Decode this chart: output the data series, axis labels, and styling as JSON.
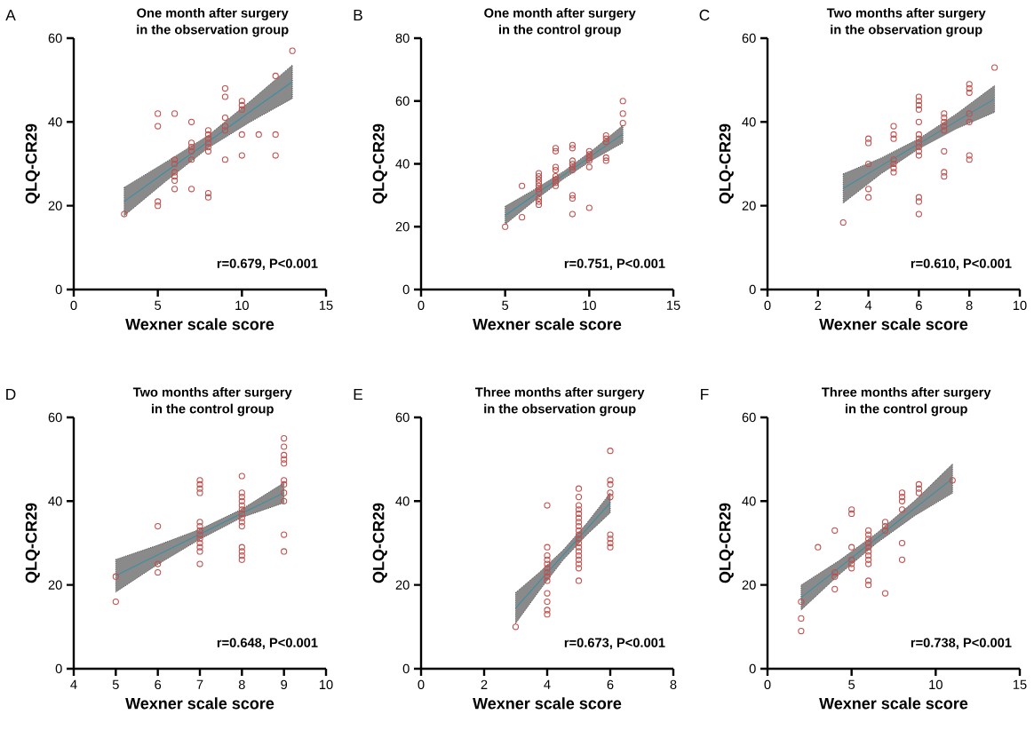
{
  "chart_data": [
    {
      "type": "scatter",
      "title": "One month after surgery",
      "subtitle": "in the observation group",
      "xlabel": "Wexner scale score",
      "ylabel": "QLQ-CR29",
      "xlim": [
        0,
        15
      ],
      "xticks": [
        0,
        5,
        10,
        15
      ],
      "ylim": [
        0,
        60
      ],
      "yticks": [
        0,
        20,
        40,
        60
      ],
      "annotations": [
        "A",
        "r=0.679, P<0.001"
      ],
      "series": [
        {
          "type": "line",
          "color": "#3a8fa5",
          "x": [
            3,
            5.5,
            8,
            10.5,
            13
          ],
          "values": [
            21,
            28.2,
            35.3,
            42.5,
            49.6
          ],
          "lower": [
            17.6,
            25.9,
            33.8,
            40,
            45.6
          ],
          "upper": [
            24.4,
            30.5,
            36.8,
            45,
            53.6
          ]
        },
        {
          "marker": "circle",
          "color": "#c0504d",
          "x": [
            3,
            5,
            5,
            5,
            5,
            6,
            6,
            6,
            6,
            6,
            6,
            6,
            7,
            7,
            7,
            7,
            7,
            7,
            8,
            8,
            8,
            8,
            8,
            8,
            8,
            8,
            9,
            9,
            9,
            9,
            9,
            9,
            10,
            10,
            10,
            10,
            10,
            11,
            12,
            12,
            12,
            13
          ],
          "values": [
            18,
            42,
            39,
            21,
            20,
            42,
            31,
            30,
            28,
            27,
            26,
            24,
            40,
            35,
            34,
            33,
            31,
            24,
            38,
            37,
            36,
            35,
            34,
            33,
            23,
            22,
            48,
            46,
            41,
            39,
            38,
            31,
            45,
            44,
            43,
            37,
            32,
            37,
            51,
            37,
            32,
            57
          ]
        }
      ]
    },
    {
      "type": "scatter",
      "title": "One month after surgery",
      "subtitle": "in the control group",
      "xlabel": "Wexner scale score",
      "ylabel": "QLQ-CR29",
      "xlim": [
        0,
        15
      ],
      "xticks": [
        0,
        5,
        10,
        15
      ],
      "ylim": [
        0,
        80
      ],
      "yticks": [
        0,
        20,
        40,
        60,
        80
      ],
      "annotations": [
        "B",
        "r=0.751, P<0.001"
      ],
      "series": [
        {
          "type": "line",
          "color": "#3a8fa5",
          "x": [
            5,
            6.75,
            8.5,
            10.25,
            12
          ],
          "values": [
            23.6,
            30.1,
            36.5,
            43,
            49.5
          ],
          "lower": [
            20.7,
            28.3,
            35.3,
            41.4,
            46.7
          ],
          "upper": [
            26.5,
            31.9,
            37.7,
            44.6,
            52.3
          ]
        },
        {
          "marker": "circle",
          "color": "#c0504d",
          "x": [
            5,
            6,
            6,
            7,
            7,
            7,
            7,
            7,
            7,
            7,
            7,
            7,
            7,
            8,
            8,
            8,
            8,
            8,
            8,
            8,
            8,
            9,
            9,
            9,
            9,
            9,
            9,
            9,
            9,
            9,
            10,
            10,
            10,
            10,
            10,
            10,
            11,
            11,
            11,
            11,
            11,
            12,
            12,
            12
          ],
          "values": [
            20,
            33,
            23,
            37,
            36,
            35,
            34,
            33,
            32,
            31,
            29,
            28,
            27,
            45,
            44,
            39,
            38,
            36,
            35,
            34,
            33,
            46,
            45,
            41,
            40,
            39,
            38,
            30,
            29,
            24,
            44,
            43,
            42,
            41,
            39,
            26,
            49,
            48,
            47,
            42,
            41,
            60,
            56,
            53
          ]
        }
      ]
    },
    {
      "type": "scatter",
      "title": "Two months after surgery",
      "subtitle": "in the observation group",
      "xlabel": "Wexner scale score",
      "ylabel": "QLQ-CR29",
      "xlim": [
        0,
        10
      ],
      "xticks": [
        0,
        2,
        4,
        6,
        8,
        10
      ],
      "ylim": [
        0,
        60
      ],
      "yticks": [
        0,
        20,
        40,
        60
      ],
      "annotations": [
        "C",
        "r=0.610, P<0.001"
      ],
      "series": [
        {
          "type": "line",
          "color": "#3a8fa5",
          "x": [
            3,
            4.5,
            6,
            7.5,
            9
          ],
          "values": [
            24.1,
            29.5,
            34.8,
            40.2,
            45.5
          ],
          "lower": [
            20.6,
            27.6,
            33.6,
            38.4,
            42.3
          ],
          "upper": [
            27.6,
            31.4,
            36,
            42,
            48.7
          ]
        },
        {
          "marker": "circle",
          "color": "#c0504d",
          "x": [
            3,
            4,
            4,
            4,
            4,
            4,
            5,
            5,
            5,
            5,
            5,
            5,
            5,
            6,
            6,
            6,
            6,
            6,
            6,
            6,
            6,
            6,
            6,
            6,
            6,
            6,
            6,
            7,
            7,
            7,
            7,
            7,
            7,
            7,
            7,
            8,
            8,
            8,
            8,
            8,
            8,
            8,
            9
          ],
          "values": [
            16,
            36,
            35,
            30,
            24,
            22,
            39,
            37,
            36,
            31,
            30,
            29,
            28,
            46,
            45,
            44,
            43,
            40,
            37,
            36,
            35,
            34,
            33,
            32,
            22,
            21,
            18,
            42,
            41,
            40,
            39,
            38,
            33,
            28,
            27,
            49,
            48,
            47,
            42,
            40,
            32,
            31,
            53
          ]
        }
      ]
    },
    {
      "type": "scatter",
      "title": "Two months after surgery",
      "subtitle": "in the control group",
      "xlabel": "Wexner scale score",
      "ylabel": "QLQ-CR29",
      "xlim": [
        4,
        10
      ],
      "xticks": [
        4,
        5,
        6,
        7,
        8,
        9,
        10
      ],
      "ylim": [
        0,
        60
      ],
      "yticks": [
        0,
        20,
        40,
        60
      ],
      "annotations": [
        "D",
        "r=0.648, P<0.001"
      ],
      "series": [
        {
          "type": "line",
          "color": "#3a8fa5",
          "x": [
            5,
            6,
            7,
            8,
            9
          ],
          "values": [
            22.2,
            27.2,
            32.1,
            37.1,
            42
          ],
          "lower": [
            18.3,
            24.9,
            30.9,
            36.1,
            39.6
          ],
          "upper": [
            26.1,
            29.5,
            33.3,
            38.1,
            44.4
          ]
        },
        {
          "marker": "circle",
          "color": "#c0504d",
          "x": [
            5,
            5,
            6,
            6,
            6,
            7,
            7,
            7,
            7,
            7,
            7,
            7,
            7,
            7,
            7,
            7,
            7,
            7,
            8,
            8,
            8,
            8,
            8,
            8,
            8,
            8,
            8,
            8,
            8,
            8,
            8,
            8,
            9,
            9,
            9,
            9,
            9,
            9,
            9,
            9,
            9,
            9,
            9
          ],
          "values": [
            22,
            16,
            34,
            25,
            23,
            45,
            44,
            43,
            42,
            35,
            34,
            33,
            32,
            31,
            30,
            29,
            28,
            25,
            46,
            42,
            41,
            40,
            39,
            38,
            37,
            36,
            35,
            34,
            29,
            28,
            27,
            26,
            55,
            53,
            51,
            50,
            49,
            45,
            44,
            42,
            40,
            32,
            28
          ]
        }
      ]
    },
    {
      "type": "scatter",
      "title": "Three months after surgery",
      "subtitle": "in the observation group",
      "xlabel": "Wexner scale score",
      "ylabel": "QLQ-CR29",
      "xlim": [
        0,
        8
      ],
      "xticks": [
        0,
        2,
        4,
        6,
        8
      ],
      "ylim": [
        0,
        60
      ],
      "yticks": [
        0,
        20,
        40,
        60
      ],
      "annotations": [
        "E",
        "r=0.673, P<0.001"
      ],
      "series": [
        {
          "type": "line",
          "color": "#3a8fa5",
          "x": [
            3,
            3.75,
            4.5,
            5.25,
            6
          ],
          "values": [
            14.5,
            20.8,
            27.1,
            33.3,
            39.6
          ],
          "lower": [
            10.8,
            18.6,
            25.9,
            31.9,
            37.2
          ],
          "upper": [
            18.2,
            23,
            28.3,
            34.7,
            42
          ]
        },
        {
          "marker": "circle",
          "color": "#c0504d",
          "x": [
            3,
            4,
            4,
            4,
            4,
            4,
            4,
            4,
            4,
            4,
            4,
            4,
            4,
            4,
            5,
            5,
            5,
            5,
            5,
            5,
            5,
            5,
            5,
            5,
            5,
            5,
            5,
            5,
            5,
            5,
            5,
            5,
            5,
            6,
            6,
            6,
            6,
            6,
            6,
            6,
            6,
            6
          ],
          "values": [
            10,
            39,
            29,
            27,
            26,
            25,
            24,
            23,
            22,
            21,
            18,
            16,
            14,
            13,
            43,
            41,
            39,
            38,
            37,
            36,
            35,
            34,
            33,
            32,
            31,
            30,
            29,
            28,
            27,
            26,
            25,
            24,
            21,
            52,
            45,
            44,
            42,
            41,
            32,
            31,
            30,
            29
          ]
        }
      ]
    },
    {
      "type": "scatter",
      "title": "Three months after surgery",
      "subtitle": "in the control group",
      "xlabel": "Wexner scale score",
      "ylabel": "QLQ-CR29",
      "xlim": [
        0,
        15
      ],
      "xticks": [
        0,
        5,
        10,
        15
      ],
      "ylim": [
        0,
        60
      ],
      "yticks": [
        0,
        20,
        40,
        60
      ],
      "annotations": [
        "F",
        "r=0.738, P<0.001"
      ],
      "series": [
        {
          "type": "line",
          "color": "#3a8fa5",
          "x": [
            2,
            4.25,
            6.5,
            8.75,
            11
          ],
          "values": [
            17,
            24.1,
            31.2,
            38.3,
            45.4
          ],
          "lower": [
            14,
            22.4,
            30,
            36.5,
            41.9
          ],
          "upper": [
            20,
            25.8,
            32.4,
            40.1,
            48.9
          ]
        },
        {
          "marker": "circle",
          "color": "#c0504d",
          "x": [
            2,
            2,
            2,
            3,
            4,
            4,
            4,
            4,
            5,
            5,
            5,
            5,
            5,
            5,
            6,
            6,
            6,
            6,
            6,
            6,
            6,
            6,
            6,
            6,
            6,
            7,
            7,
            7,
            7,
            8,
            8,
            8,
            8,
            8,
            8,
            9,
            9,
            9,
            11
          ],
          "values": [
            16,
            12,
            9,
            29,
            33,
            23,
            22,
            19,
            38,
            37,
            29,
            26,
            25,
            24,
            33,
            32,
            31,
            30,
            29,
            28,
            27,
            26,
            25,
            21,
            20,
            35,
            34,
            33,
            18,
            42,
            41,
            40,
            38,
            30,
            26,
            44,
            43,
            42,
            45
          ]
        }
      ]
    }
  ]
}
